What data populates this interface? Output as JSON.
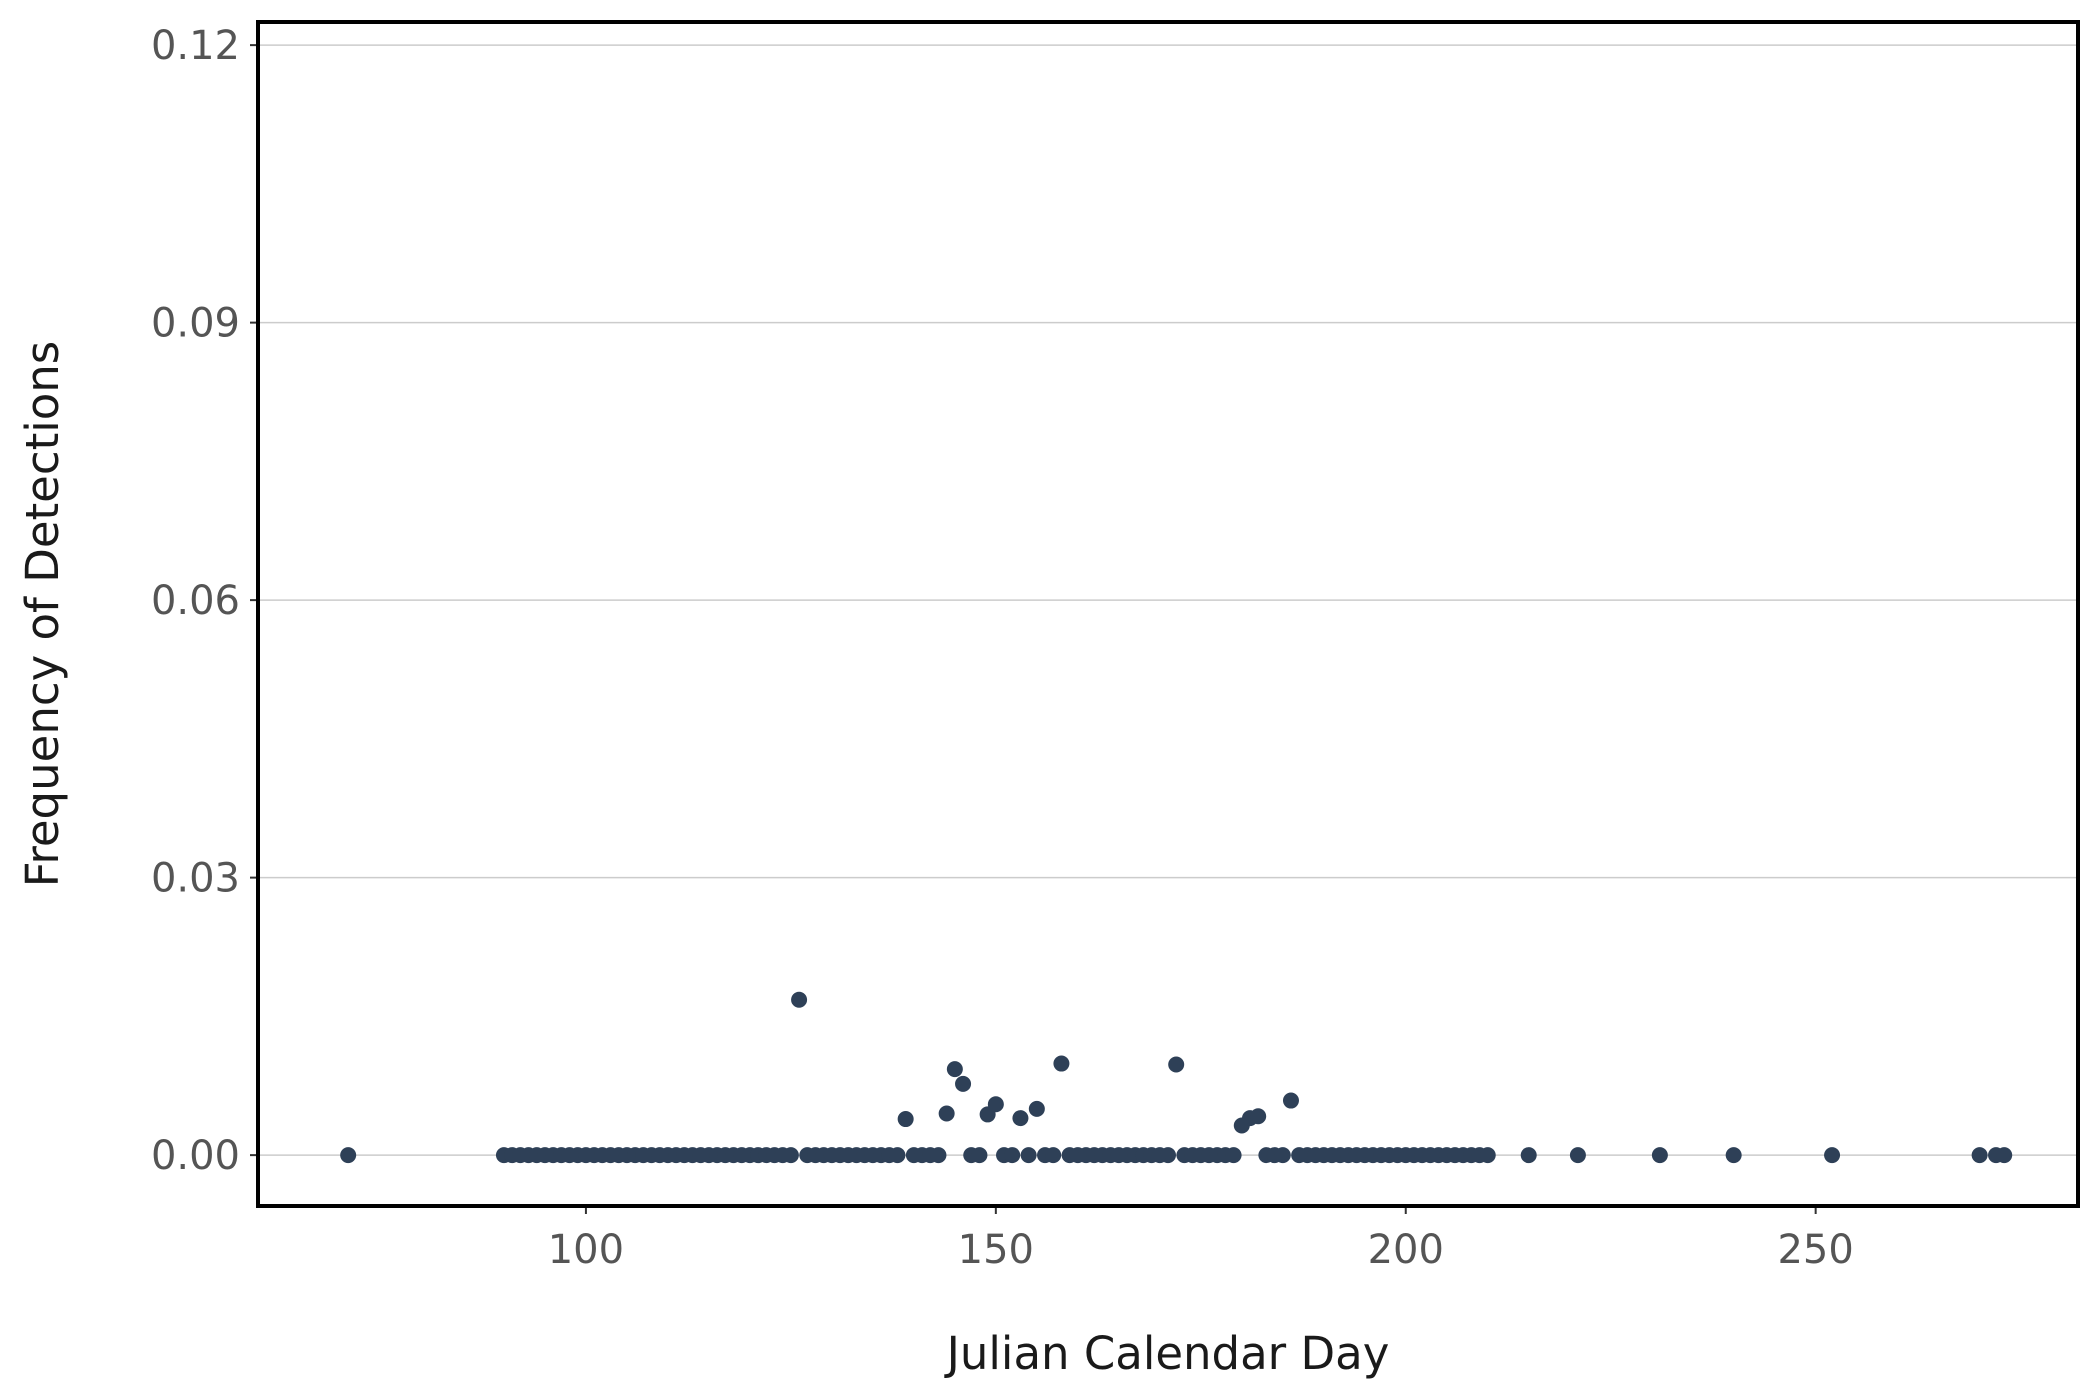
{
  "chart_data": {
    "type": "scatter",
    "title": "",
    "xlabel": "Julian Calendar Day",
    "ylabel": "Frequency of Detections",
    "xlim": [
      60,
      282
    ],
    "ylim": [
      -0.0055,
      0.1225
    ],
    "x_ticks": [
      100,
      150,
      200,
      250
    ],
    "y_ticks": [
      0.0,
      0.03,
      0.06,
      0.09,
      0.12
    ],
    "x_tick_labels": [
      "100",
      "150",
      "200",
      "250"
    ],
    "y_tick_labels": [
      "0.00",
      "0.03",
      "0.06",
      "0.09",
      "0.12"
    ],
    "grid": "horizontal major",
    "point_color": "#2e4057",
    "series": [
      {
        "points": [
          [
            71,
            0
          ],
          [
            90,
            0
          ],
          [
            91,
            0
          ],
          [
            92,
            0
          ],
          [
            93,
            0
          ],
          [
            94,
            0
          ],
          [
            95,
            0
          ],
          [
            96,
            0
          ],
          [
            97,
            0
          ],
          [
            98,
            0
          ],
          [
            99,
            0
          ],
          [
            100,
            0
          ],
          [
            101,
            0
          ],
          [
            102,
            0
          ],
          [
            103,
            0
          ],
          [
            104,
            0
          ],
          [
            105,
            0
          ],
          [
            106,
            0
          ],
          [
            107,
            0
          ],
          [
            108,
            0
          ],
          [
            109,
            0
          ],
          [
            110,
            0
          ],
          [
            111,
            0
          ],
          [
            112,
            0
          ],
          [
            113,
            0
          ],
          [
            114,
            0
          ],
          [
            115,
            0
          ],
          [
            116,
            0
          ],
          [
            117,
            0
          ],
          [
            118,
            0
          ],
          [
            119,
            0
          ],
          [
            120,
            0
          ],
          [
            121,
            0
          ],
          [
            122,
            0
          ],
          [
            123,
            0
          ],
          [
            124,
            0
          ],
          [
            125,
            0
          ],
          [
            126,
            0.0168
          ],
          [
            127,
            0
          ],
          [
            128,
            0
          ],
          [
            129,
            0
          ],
          [
            130,
            0
          ],
          [
            131,
            0
          ],
          [
            132,
            0
          ],
          [
            133,
            0
          ],
          [
            134,
            0
          ],
          [
            135,
            0
          ],
          [
            136,
            0
          ],
          [
            137,
            0
          ],
          [
            138,
            0
          ],
          [
            139,
            0.0039
          ],
          [
            140,
            0
          ],
          [
            141,
            0
          ],
          [
            142,
            0
          ],
          [
            143,
            0
          ],
          [
            144,
            0.0045
          ],
          [
            145,
            0.0093
          ],
          [
            146,
            0.0077
          ],
          [
            147,
            0
          ],
          [
            148,
            0
          ],
          [
            149,
            0.0044
          ],
          [
            150,
            0.0055
          ],
          [
            151,
            0
          ],
          [
            152,
            0
          ],
          [
            153,
            0.004
          ],
          [
            154,
            0
          ],
          [
            155,
            0.005
          ],
          [
            156,
            0
          ],
          [
            157,
            0
          ],
          [
            158,
            0.0099
          ],
          [
            159,
            0
          ],
          [
            160,
            0
          ],
          [
            161,
            0
          ],
          [
            162,
            0
          ],
          [
            163,
            0
          ],
          [
            164,
            0
          ],
          [
            165,
            0
          ],
          [
            166,
            0
          ],
          [
            167,
            0
          ],
          [
            168,
            0
          ],
          [
            169,
            0
          ],
          [
            170,
            0
          ],
          [
            171,
            0
          ],
          [
            172,
            0.0098
          ],
          [
            173,
            0
          ],
          [
            174,
            0
          ],
          [
            175,
            0
          ],
          [
            176,
            0
          ],
          [
            177,
            0
          ],
          [
            178,
            0
          ],
          [
            179,
            0
          ],
          [
            180,
            0.0032
          ],
          [
            181,
            0.004
          ],
          [
            182,
            0.0042
          ],
          [
            183,
            0
          ],
          [
            184,
            0
          ],
          [
            185,
            0
          ],
          [
            186,
            0.0059
          ],
          [
            187,
            0
          ],
          [
            188,
            0
          ],
          [
            189,
            0
          ],
          [
            190,
            0
          ],
          [
            191,
            0
          ],
          [
            192,
            0
          ],
          [
            193,
            0
          ],
          [
            194,
            0
          ],
          [
            195,
            0
          ],
          [
            196,
            0
          ],
          [
            197,
            0
          ],
          [
            198,
            0
          ],
          [
            199,
            0
          ],
          [
            200,
            0
          ],
          [
            201,
            0
          ],
          [
            202,
            0
          ],
          [
            203,
            0
          ],
          [
            204,
            0
          ],
          [
            205,
            0
          ],
          [
            206,
            0
          ],
          [
            207,
            0
          ],
          [
            208,
            0
          ],
          [
            209,
            0
          ],
          [
            210,
            0
          ],
          [
            215,
            0
          ],
          [
            221,
            0
          ],
          [
            231,
            0
          ],
          [
            240,
            0
          ],
          [
            252,
            0
          ],
          [
            270,
            0
          ],
          [
            272,
            0
          ],
          [
            273,
            0
          ]
        ]
      }
    ]
  }
}
